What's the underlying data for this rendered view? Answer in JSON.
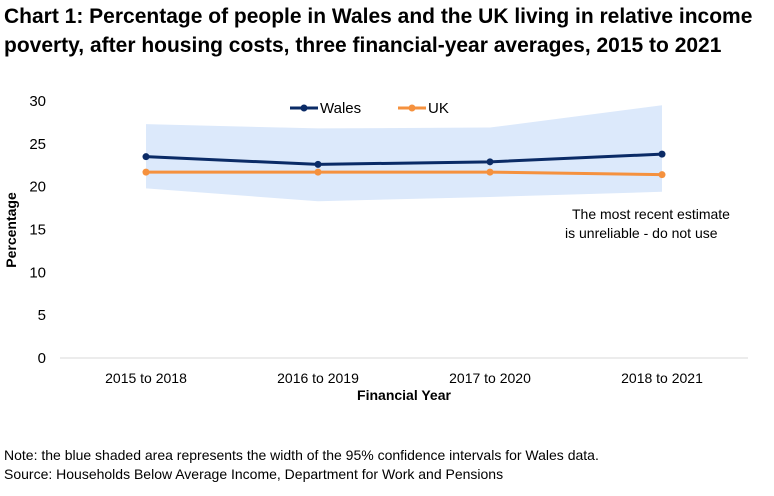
{
  "chart_data": {
    "type": "line",
    "title": "Chart 1: Percentage of people in Wales and the UK living in relative income poverty, after housing costs, three financial-year averages, 2015 to 2021",
    "xlabel": "Financial Year",
    "ylabel": "Percentage",
    "ylim": [
      0,
      30
    ],
    "yticks": [
      0,
      5,
      10,
      15,
      20,
      25,
      30
    ],
    "categories": [
      "2015 to 2018",
      "2016 to 2019",
      "2017 to 2020",
      "2018 to 2021"
    ],
    "series": [
      {
        "name": "Wales",
        "color": "#0b2b66",
        "values": [
          23.5,
          22.6,
          22.9,
          23.8
        ]
      },
      {
        "name": "UK",
        "color": "#f5913e",
        "values": [
          21.7,
          21.7,
          21.7,
          21.4
        ]
      }
    ],
    "confidence_interval": {
      "color": "#dce9fb",
      "lower": [
        19.8,
        18.3,
        18.8,
        19.4
      ],
      "upper": [
        27.3,
        26.8,
        26.9,
        29.5
      ]
    },
    "legend": "top-center",
    "grid": false,
    "annotation": [
      "The most recent estimate",
      "is unreliable - do not use"
    ]
  },
  "notes": {
    "note": "Note: the blue shaded area represents the width of the 95% confidence intervals for Wales data.",
    "source": "Source: Households Below Average Income, Department for Work and Pensions"
  }
}
